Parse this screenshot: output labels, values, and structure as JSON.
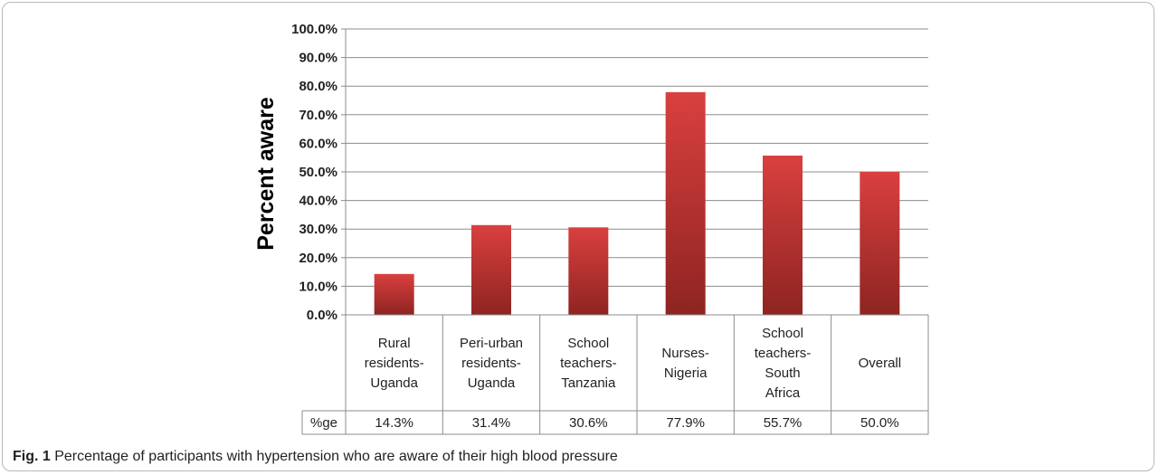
{
  "chart_data": {
    "type": "bar",
    "title": "",
    "xlabel": "",
    "ylabel": "Percent aware",
    "ylim": [
      0,
      100
    ],
    "y_ticks": [
      "0.0%",
      "10.0%",
      "20.0%",
      "30.0%",
      "40.0%",
      "50.0%",
      "60.0%",
      "70.0%",
      "80.0%",
      "90.0%",
      "100.0%"
    ],
    "grid": true,
    "legend": "none",
    "bar_color_top": "#d9403f",
    "bar_color_bottom": "#8e2421",
    "categories": [
      [
        "Rural",
        "residents-",
        "Uganda"
      ],
      [
        "Peri-urban",
        "residents-",
        "Uganda"
      ],
      [
        "School",
        "teachers-",
        "Tanzania"
      ],
      [
        "Nurses-",
        "Nigeria"
      ],
      [
        "School",
        "teachers-",
        "South",
        "Africa"
      ],
      [
        "Overall"
      ]
    ],
    "values": [
      14.3,
      31.4,
      30.6,
      77.9,
      55.7,
      50.0
    ],
    "data_table": {
      "row_label": "%ge",
      "cells": [
        "14.3%",
        "31.4%",
        "30.6%",
        "77.9%",
        "55.7%",
        "50.0%"
      ]
    }
  },
  "caption": {
    "label": "Fig. 1",
    "text": " Percentage of participants with hypertension who are aware of their high blood pressure"
  }
}
